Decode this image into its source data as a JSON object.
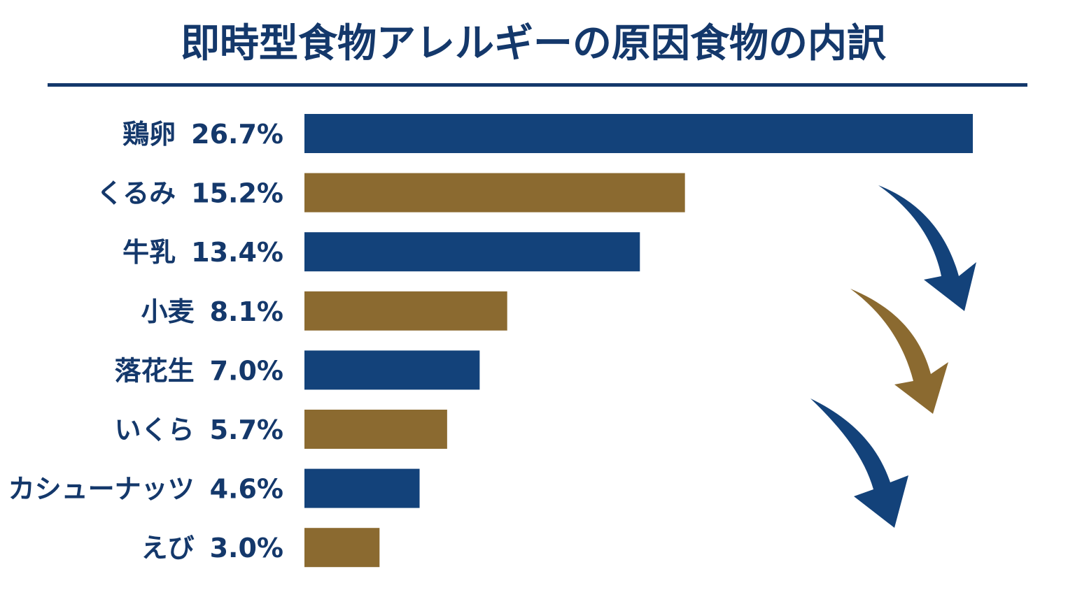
{
  "chart_data": {
    "type": "bar",
    "orientation": "horizontal",
    "title": "即時型食物アレルギーの原因食物の内訳",
    "categories": [
      "鶏卵",
      "くるみ",
      "牛乳",
      "小麦",
      "落花生",
      "いくら",
      "カシューナッツ",
      "えび"
    ],
    "values": [
      26.7,
      15.2,
      13.4,
      8.1,
      7.0,
      5.7,
      4.6,
      3.0
    ],
    "value_labels": [
      "26.7%",
      "15.2%",
      "13.4%",
      "8.1%",
      "7.0%",
      "5.7%",
      "4.6%",
      "3.0%"
    ],
    "colors": [
      "#13427a",
      "#8b6a30",
      "#13427a",
      "#8b6a30",
      "#13427a",
      "#8b6a30",
      "#13427a",
      "#8b6a30"
    ]
  }
}
